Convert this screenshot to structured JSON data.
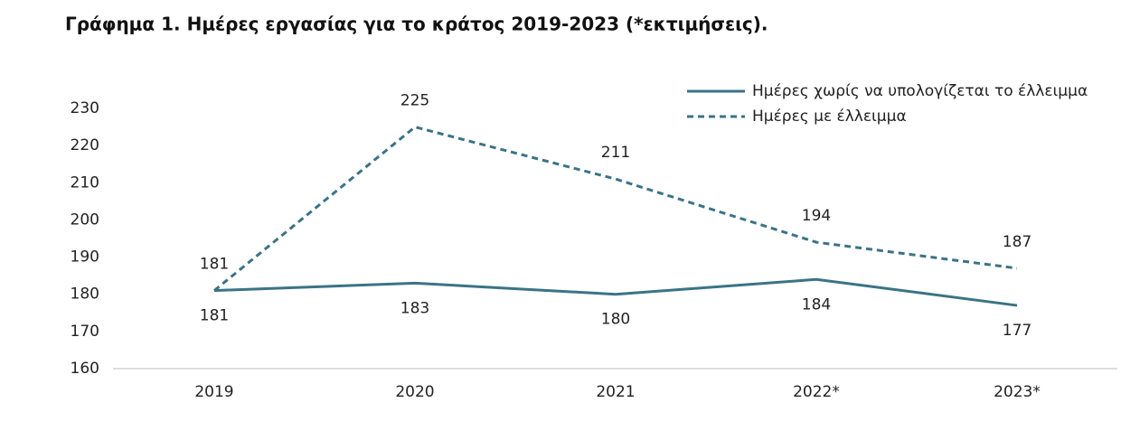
{
  "chart_data": {
    "type": "line",
    "title": "Γράφημα 1. Ημέρες εργασίας για το κράτος 2019-2023 (*εκτιμήσεις).",
    "categories": [
      "2019",
      "2020",
      "2021",
      "2022*",
      "2023*"
    ],
    "series": [
      {
        "name": "Ημέρες χωρίς να υπολογίζεται το έλλειμμα",
        "color": "#3b7386",
        "line_style": "solid",
        "label_position": "below",
        "values": [
          181,
          183,
          180,
          184,
          177
        ]
      },
      {
        "name": "Ημέρες με έλλειμμα",
        "color": "#3b7386",
        "line_style": "dashed",
        "label_position": "above",
        "values": [
          181,
          225,
          211,
          194,
          187
        ]
      }
    ],
    "ylim": [
      160,
      230
    ],
    "yticks": [
      160,
      170,
      180,
      190,
      200,
      210,
      220,
      230
    ],
    "grid": false,
    "legend": "top-right"
  }
}
